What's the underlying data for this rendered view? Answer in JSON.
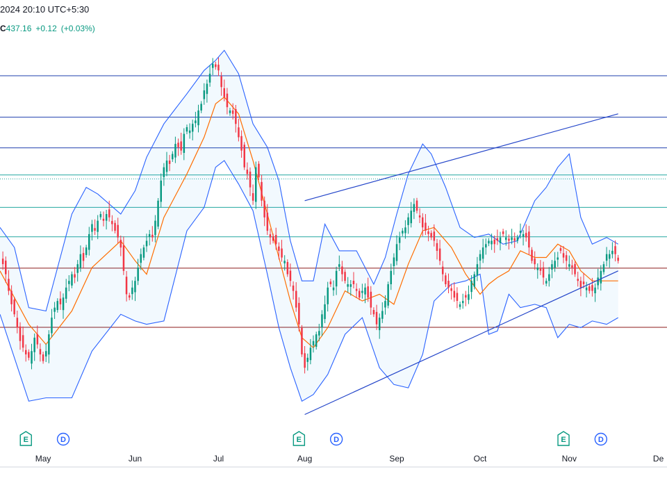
{
  "header": {
    "timestamp": "2024 20:10 UTC+5:30",
    "close_prefix": "C",
    "close_value": "437.16",
    "change": "+0.12",
    "change_pct": "(+0.03%)"
  },
  "colors": {
    "candle_up": "#089981",
    "candle_down": "#f23645",
    "basis": "#ff6d00",
    "band": "#2962ff",
    "band_fill": "#2196f3",
    "hline_blue": "#1e3fae",
    "hline_teal": "#22a7a0",
    "hline_red": "#8b1a1a",
    "trendline": "#2345c9",
    "event_earnings": "#089981",
    "event_dividend": "#2962ff"
  },
  "chart_data": {
    "type": "candlestick",
    "x_labels": [
      "May",
      "Jun",
      "Jul",
      "Aug",
      "Sep",
      "Oct",
      "Nov",
      "De"
    ],
    "x_label_days": [
      28,
      60,
      89,
      119,
      151,
      180,
      211,
      242
    ],
    "x_range_days": [
      13,
      245
    ],
    "y_range": [
      330,
      450
    ],
    "close_series": [
      [
        13,
        385
      ],
      [
        14,
        383
      ],
      [
        15,
        380
      ],
      [
        16,
        375
      ],
      [
        17,
        371
      ],
      [
        18,
        368
      ],
      [
        19,
        364
      ],
      [
        20,
        360
      ],
      [
        21,
        358
      ],
      [
        22,
        356
      ],
      [
        23,
        355
      ],
      [
        24,
        357
      ],
      [
        25,
        361
      ],
      [
        26,
        359
      ],
      [
        27,
        356
      ],
      [
        28,
        354
      ],
      [
        29,
        357
      ],
      [
        30,
        362
      ],
      [
        31,
        367
      ],
      [
        32,
        370
      ],
      [
        33,
        372
      ],
      [
        34,
        371
      ],
      [
        35,
        373
      ],
      [
        36,
        376
      ],
      [
        37,
        378
      ],
      [
        38,
        380
      ],
      [
        39,
        379
      ],
      [
        40,
        383
      ],
      [
        41,
        386
      ],
      [
        42,
        384
      ],
      [
        43,
        388
      ],
      [
        44,
        392
      ],
      [
        45,
        395
      ],
      [
        46,
        393
      ],
      [
        47,
        396
      ],
      [
        48,
        398
      ],
      [
        49,
        396
      ],
      [
        50,
        398
      ],
      [
        51,
        397
      ],
      [
        52,
        395
      ],
      [
        53,
        393
      ],
      [
        54,
        391
      ],
      [
        55,
        388
      ],
      [
        56,
        381
      ],
      [
        57,
        374
      ],
      [
        58,
        373
      ],
      [
        59,
        376
      ],
      [
        60,
        378
      ],
      [
        61,
        382
      ],
      [
        62,
        386
      ],
      [
        63,
        388
      ],
      [
        64,
        390
      ],
      [
        65,
        392
      ],
      [
        66,
        391
      ],
      [
        67,
        396
      ],
      [
        68,
        402
      ],
      [
        69,
        408
      ],
      [
        70,
        412
      ],
      [
        71,
        414
      ],
      [
        72,
        413
      ],
      [
        73,
        416
      ],
      [
        74,
        419
      ],
      [
        75,
        418
      ],
      [
        76,
        417
      ],
      [
        77,
        422
      ],
      [
        78,
        424
      ],
      [
        79,
        423
      ],
      [
        80,
        425
      ],
      [
        81,
        426
      ],
      [
        82,
        429
      ],
      [
        83,
        431
      ],
      [
        84,
        435
      ],
      [
        85,
        437
      ],
      [
        86,
        440
      ],
      [
        87,
        443
      ],
      [
        88,
        442
      ],
      [
        89,
        441
      ],
      [
        90,
        436
      ],
      [
        91,
        433
      ],
      [
        92,
        430
      ],
      [
        93,
        429
      ],
      [
        94,
        428
      ],
      [
        95,
        425
      ],
      [
        96,
        421
      ],
      [
        97,
        417
      ],
      [
        98,
        412
      ],
      [
        99,
        410
      ],
      [
        100,
        406
      ],
      [
        101,
        402
      ],
      [
        102,
        412
      ],
      [
        103,
        409
      ],
      [
        104,
        402
      ],
      [
        105,
        397
      ],
      [
        106,
        393
      ],
      [
        107,
        391
      ],
      [
        108,
        390
      ],
      [
        109,
        389
      ],
      [
        110,
        387
      ],
      [
        111,
        385
      ],
      [
        112,
        384
      ],
      [
        113,
        380
      ],
      [
        114,
        378
      ],
      [
        115,
        375
      ],
      [
        116,
        370
      ],
      [
        117,
        365
      ],
      [
        118,
        356
      ],
      [
        119,
        352
      ],
      [
        120,
        355
      ],
      [
        121,
        358
      ],
      [
        122,
        360
      ],
      [
        123,
        362
      ],
      [
        124,
        363
      ],
      [
        125,
        368
      ],
      [
        126,
        371
      ],
      [
        127,
        376
      ],
      [
        128,
        377
      ],
      [
        129,
        376
      ],
      [
        130,
        381
      ],
      [
        131,
        383
      ],
      [
        132,
        380
      ],
      [
        133,
        378
      ],
      [
        134,
        377
      ],
      [
        135,
        377
      ],
      [
        136,
        377
      ],
      [
        137,
        375
      ],
      [
        138,
        373
      ],
      [
        139,
        375
      ],
      [
        140,
        376
      ],
      [
        141,
        373
      ],
      [
        142,
        370
      ],
      [
        143,
        368
      ],
      [
        144,
        365
      ],
      [
        145,
        367
      ],
      [
        146,
        369
      ],
      [
        147,
        372
      ],
      [
        148,
        377
      ],
      [
        149,
        381
      ],
      [
        150,
        385
      ],
      [
        151,
        389
      ],
      [
        152,
        391
      ],
      [
        153,
        393
      ],
      [
        154,
        394
      ],
      [
        155,
        397
      ],
      [
        156,
        399
      ],
      [
        157,
        401
      ],
      [
        158,
        399
      ],
      [
        159,
        397
      ],
      [
        160,
        394
      ],
      [
        161,
        393
      ],
      [
        162,
        392
      ],
      [
        163,
        391
      ],
      [
        164,
        390
      ],
      [
        165,
        387
      ],
      [
        166,
        384
      ],
      [
        167,
        380
      ],
      [
        168,
        377
      ],
      [
        169,
        376
      ],
      [
        170,
        375
      ],
      [
        171,
        373
      ],
      [
        172,
        372
      ],
      [
        173,
        371
      ],
      [
        174,
        372
      ],
      [
        175,
        373
      ],
      [
        176,
        374
      ],
      [
        177,
        378
      ],
      [
        178,
        380
      ],
      [
        179,
        383
      ],
      [
        180,
        386
      ],
      [
        181,
        388
      ],
      [
        182,
        389
      ],
      [
        183,
        390
      ],
      [
        184,
        390
      ],
      [
        185,
        389
      ],
      [
        186,
        390
      ],
      [
        187,
        391
      ],
      [
        188,
        392
      ],
      [
        189,
        391
      ],
      [
        190,
        390
      ],
      [
        191,
        391
      ],
      [
        192,
        390
      ],
      [
        193,
        391
      ],
      [
        194,
        393
      ],
      [
        195,
        392
      ],
      [
        196,
        391
      ],
      [
        197,
        388
      ],
      [
        198,
        384
      ],
      [
        199,
        383
      ],
      [
        200,
        382
      ],
      [
        201,
        381
      ],
      [
        202,
        379
      ],
      [
        203,
        378
      ],
      [
        204,
        380
      ],
      [
        205,
        383
      ],
      [
        206,
        384
      ],
      [
        207,
        385
      ],
      [
        208,
        387
      ],
      [
        209,
        385
      ],
      [
        210,
        384
      ],
      [
        211,
        383
      ],
      [
        212,
        382
      ],
      [
        213,
        380
      ],
      [
        214,
        378
      ],
      [
        215,
        376
      ],
      [
        216,
        377
      ],
      [
        217,
        376
      ],
      [
        218,
        375
      ],
      [
        219,
        375
      ],
      [
        220,
        376
      ],
      [
        221,
        379
      ],
      [
        222,
        381
      ],
      [
        223,
        383
      ],
      [
        224,
        386
      ],
      [
        225,
        386
      ],
      [
        226,
        387
      ],
      [
        227,
        386
      ],
      [
        228,
        384
      ]
    ],
    "bollinger": {
      "basis": [
        [
          13,
          381
        ],
        [
          23,
          365
        ],
        [
          29,
          359
        ],
        [
          38,
          369
        ],
        [
          45,
          382
        ],
        [
          55,
          390
        ],
        [
          60,
          384
        ],
        [
          64,
          380
        ],
        [
          70,
          397
        ],
        [
          78,
          410
        ],
        [
          84,
          421
        ],
        [
          88,
          431
        ],
        [
          91,
          433
        ],
        [
          96,
          428
        ],
        [
          101,
          414
        ],
        [
          106,
          398
        ],
        [
          110,
          385
        ],
        [
          114,
          372
        ],
        [
          118,
          361
        ],
        [
          122,
          358
        ],
        [
          127,
          364
        ],
        [
          133,
          375
        ],
        [
          139,
          372
        ],
        [
          145,
          374
        ],
        [
          150,
          371
        ],
        [
          155,
          383
        ],
        [
          160,
          393
        ],
        [
          164,
          394
        ],
        [
          170,
          388
        ],
        [
          175,
          380
        ],
        [
          180,
          374
        ],
        [
          183,
          377
        ],
        [
          186,
          379
        ],
        [
          190,
          381
        ],
        [
          194,
          387
        ],
        [
          199,
          385
        ],
        [
          203,
          385
        ],
        [
          207,
          389
        ],
        [
          211,
          387
        ],
        [
          215,
          381
        ],
        [
          219,
          378
        ],
        [
          224,
          378
        ],
        [
          228,
          378
        ]
      ],
      "upper": [
        [
          13,
          394
        ],
        [
          18,
          388
        ],
        [
          23,
          370
        ],
        [
          29,
          369
        ],
        [
          38,
          398
        ],
        [
          43,
          406
        ],
        [
          47,
          404
        ],
        [
          55,
          398
        ],
        [
          60,
          405
        ],
        [
          64,
          415
        ],
        [
          70,
          425
        ],
        [
          78,
          434
        ],
        [
          84,
          441
        ],
        [
          88,
          444
        ],
        [
          91,
          447
        ],
        [
          96,
          440
        ],
        [
          101,
          425
        ],
        [
          106,
          418
        ],
        [
          110,
          408
        ],
        [
          114,
          390
        ],
        [
          118,
          378
        ],
        [
          122,
          378
        ],
        [
          126,
          395
        ],
        [
          131,
          387
        ],
        [
          137,
          387
        ],
        [
          143,
          377
        ],
        [
          147,
          385
        ],
        [
          151,
          398
        ],
        [
          155,
          410
        ],
        [
          160,
          419
        ],
        [
          163,
          416
        ],
        [
          168,
          406
        ],
        [
          173,
          394
        ],
        [
          178,
          391
        ],
        [
          183,
          392
        ],
        [
          188,
          389
        ],
        [
          193,
          390
        ],
        [
          199,
          402
        ],
        [
          203,
          406
        ],
        [
          207,
          412
        ],
        [
          211,
          416
        ],
        [
          215,
          397
        ],
        [
          219,
          389
        ],
        [
          224,
          391
        ],
        [
          228,
          389
        ]
      ],
      "lower": [
        [
          13,
          368
        ],
        [
          18,
          355
        ],
        [
          23,
          342
        ],
        [
          29,
          343
        ],
        [
          38,
          343
        ],
        [
          45,
          357
        ],
        [
          55,
          368
        ],
        [
          60,
          366
        ],
        [
          64,
          365
        ],
        [
          70,
          366
        ],
        [
          78,
          393
        ],
        [
          84,
          400
        ],
        [
          88,
          412
        ],
        [
          91,
          414
        ],
        [
          96,
          407
        ],
        [
          101,
          399
        ],
        [
          106,
          380
        ],
        [
          110,
          364
        ],
        [
          114,
          352
        ],
        [
          118,
          342
        ],
        [
          122,
          344
        ],
        [
          127,
          350
        ],
        [
          133,
          362
        ],
        [
          139,
          367
        ],
        [
          145,
          352
        ],
        [
          150,
          347
        ],
        [
          155,
          346
        ],
        [
          160,
          356
        ],
        [
          164,
          372
        ],
        [
          170,
          377
        ],
        [
          175,
          378
        ],
        [
          180,
          380
        ],
        [
          183,
          362
        ],
        [
          186,
          363
        ],
        [
          190,
          374
        ],
        [
          194,
          370
        ],
        [
          199,
          371
        ],
        [
          203,
          370
        ],
        [
          207,
          361
        ],
        [
          211,
          365
        ],
        [
          215,
          364
        ],
        [
          219,
          366
        ],
        [
          224,
          365
        ],
        [
          228,
          367
        ]
      ]
    },
    "horizontal_levels": [
      {
        "price": 439.4,
        "style": "blue"
      },
      {
        "price": 427.0,
        "style": "blue"
      },
      {
        "price": 417.8,
        "style": "blue"
      },
      {
        "price": 409.7,
        "style": "teal"
      },
      {
        "price": 408.5,
        "style": "teal-dotted"
      },
      {
        "price": 400.0,
        "style": "teal"
      },
      {
        "price": 391.2,
        "style": "teal"
      },
      {
        "price": 381.8,
        "style": "red"
      },
      {
        "price": 364.1,
        "style": "red"
      }
    ],
    "trendlines": [
      {
        "from": [
          119,
          402
        ],
        "to": [
          228,
          428
        ]
      },
      {
        "from": [
          119,
          338
        ],
        "to": [
          228,
          381
        ]
      }
    ],
    "events": [
      {
        "day": 22,
        "label": "E",
        "kind": "earnings"
      },
      {
        "day": 35,
        "label": "D",
        "kind": "dividend"
      },
      {
        "day": 117,
        "label": "E",
        "kind": "earnings"
      },
      {
        "day": 130,
        "label": "D",
        "kind": "dividend"
      },
      {
        "day": 209,
        "label": "E",
        "kind": "earnings"
      },
      {
        "day": 222,
        "label": "D",
        "kind": "dividend"
      }
    ]
  }
}
